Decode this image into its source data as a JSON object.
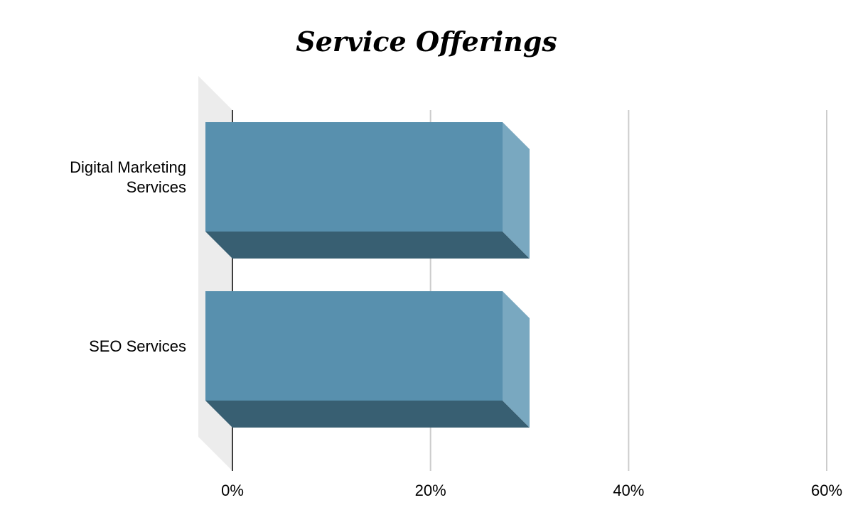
{
  "chart_data": {
    "type": "bar",
    "orientation": "horizontal",
    "three_d": true,
    "title": "Service Offerings",
    "categories": [
      [
        "Digital Marketing",
        "Services"
      ],
      [
        "SEO Services"
      ]
    ],
    "series": [
      {
        "values": [
          30,
          30
        ]
      }
    ],
    "x_axis": {
      "range": [
        0,
        60
      ],
      "ticks": [
        0,
        20,
        40,
        60
      ],
      "tick_labels": [
        "0%",
        "20%",
        "40%",
        "60%"
      ],
      "unit": "%"
    },
    "grid": true,
    "legend": "none",
    "colors": {
      "bar_front": "#5890ae",
      "bar_side": "#79a8c0",
      "bar_bottom": "#385f72",
      "wall": "#ececec",
      "grid": "#cccccc",
      "axis": "#000000"
    }
  }
}
